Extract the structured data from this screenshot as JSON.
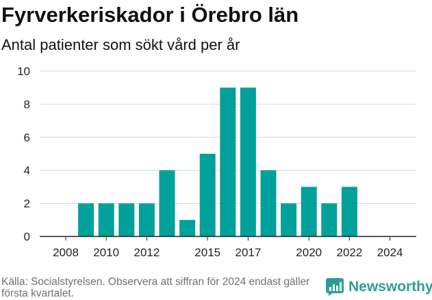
{
  "title": "Fyrverkeriskador i Örebro län",
  "subtitle": "Antal patienter som sökt vård per år",
  "footer": {
    "source": "Källa: Socialstyrelsen. Observera att siffran för 2024 endast gäller första kvartalet.",
    "brand": "Newsworthy"
  },
  "colors": {
    "bar": "#00a19a",
    "grid": "#d4d4d4",
    "axis": "#222222",
    "brand": "#2e9e94"
  },
  "chart_data": {
    "type": "bar",
    "title": "Fyrverkeriskador i Örebro län",
    "subtitle": "Antal patienter som sökt vård per år",
    "xlabel": "",
    "ylabel": "",
    "categories": [
      2008,
      2009,
      2010,
      2011,
      2012,
      2013,
      2014,
      2015,
      2016,
      2017,
      2018,
      2019,
      2020,
      2021,
      2022,
      2023,
      2024
    ],
    "values": [
      0,
      2,
      2,
      2,
      2,
      4,
      1,
      5,
      9,
      9,
      4,
      2,
      3,
      2,
      3,
      0,
      0
    ],
    "ylim": [
      0,
      10
    ],
    "yticks": [
      0,
      2,
      4,
      6,
      8,
      10
    ],
    "xticks": [
      2008,
      2010,
      2012,
      2015,
      2017,
      2020,
      2022,
      2024
    ],
    "grid": true,
    "legend": "none"
  }
}
